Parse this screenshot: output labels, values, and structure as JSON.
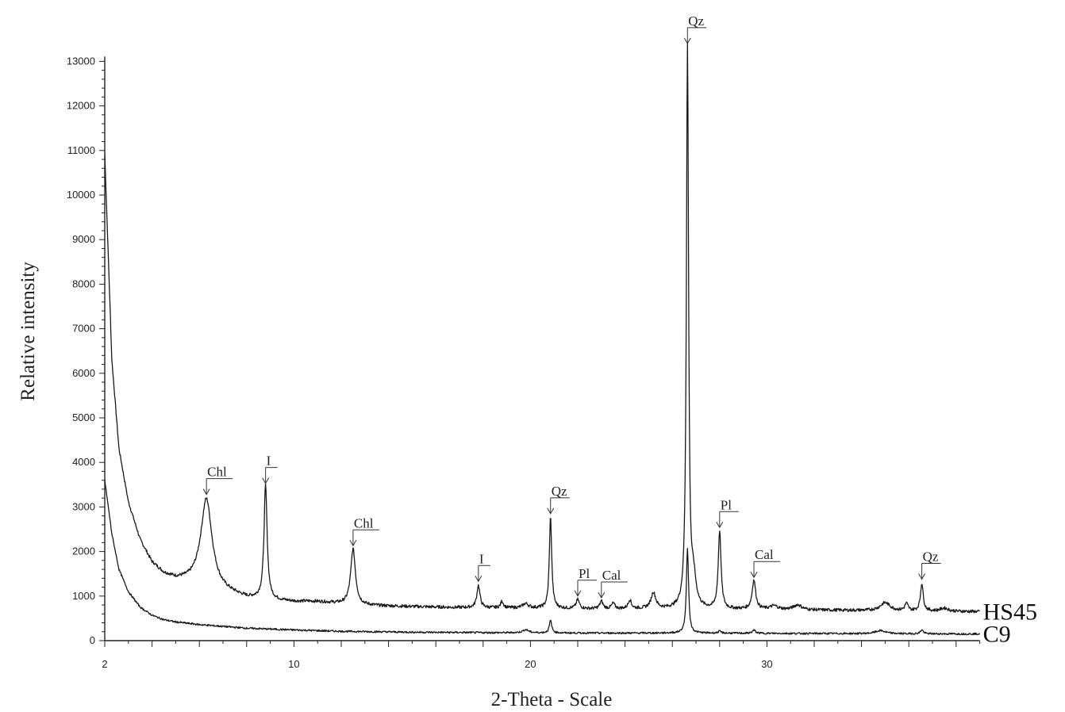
{
  "chart_data": {
    "type": "line",
    "title": "",
    "xlabel": "2-Theta - Scale",
    "ylabel": "Relative intensity",
    "xlim": [
      2,
      39
    ],
    "ylim": [
      0,
      13000
    ],
    "x_ticks": [
      2,
      10,
      20,
      30
    ],
    "y_ticks": [
      0,
      1000,
      2000,
      3000,
      4000,
      5000,
      6000,
      7000,
      8000,
      9000,
      10000,
      11000,
      12000,
      13000
    ],
    "grid": false,
    "series": [
      {
        "name": "HS45",
        "baseline": [
          [
            2,
            10900
          ],
          [
            2.3,
            6300
          ],
          [
            2.6,
            4300
          ],
          [
            3,
            3100
          ],
          [
            3.5,
            2250
          ],
          [
            4,
            1750
          ],
          [
            4.5,
            1500
          ],
          [
            5,
            1380
          ],
          [
            5.5,
            1330
          ],
          [
            6,
            1300
          ],
          [
            6.5,
            1200
          ],
          [
            7,
            1100
          ],
          [
            8,
            950
          ],
          [
            9,
            900
          ],
          [
            10,
            850
          ],
          [
            11,
            820
          ],
          [
            12,
            800
          ],
          [
            13,
            780
          ],
          [
            15,
            760
          ],
          [
            17,
            740
          ],
          [
            19,
            730
          ],
          [
            21,
            720
          ],
          [
            23,
            710
          ],
          [
            25,
            710
          ],
          [
            27,
            700
          ],
          [
            29,
            700
          ],
          [
            31,
            690
          ],
          [
            33,
            680
          ],
          [
            35,
            670
          ],
          [
            37,
            660
          ],
          [
            39,
            650
          ]
        ],
        "peaks": [
          [
            6.3,
            1950,
            0.28
          ],
          [
            8.8,
            2550,
            0.08
          ],
          [
            11,
            50,
            1.0
          ],
          [
            12.5,
            1250,
            0.12
          ],
          [
            17.8,
            500,
            0.08
          ],
          [
            18.8,
            150,
            0.07
          ],
          [
            19.8,
            100,
            0.15
          ],
          [
            20.85,
            2050,
            0.06
          ],
          [
            22.0,
            200,
            0.08
          ],
          [
            23.0,
            170,
            0.08
          ],
          [
            23.5,
            120,
            0.08
          ],
          [
            24.2,
            200,
            0.08
          ],
          [
            25.2,
            360,
            0.12
          ],
          [
            26.64,
            12600,
            0.055
          ],
          [
            26.9,
            600,
            0.12
          ],
          [
            28.0,
            1750,
            0.07
          ],
          [
            29.45,
            650,
            0.09
          ],
          [
            30.3,
            80,
            0.2
          ],
          [
            31.3,
            110,
            0.2
          ],
          [
            35.0,
            180,
            0.25
          ],
          [
            35.9,
            160,
            0.08
          ],
          [
            36.55,
            620,
            0.07
          ],
          [
            37.5,
            70,
            0.2
          ]
        ],
        "end_label": "HS45"
      },
      {
        "name": "C9",
        "baseline": [
          [
            2,
            3600
          ],
          [
            2.3,
            2400
          ],
          [
            2.6,
            1600
          ],
          [
            3,
            1100
          ],
          [
            3.5,
            750
          ],
          [
            4,
            570
          ],
          [
            4.5,
            470
          ],
          [
            5,
            420
          ],
          [
            6,
            360
          ],
          [
            7,
            320
          ],
          [
            8,
            280
          ],
          [
            10,
            240
          ],
          [
            12,
            210
          ],
          [
            15,
            190
          ],
          [
            18,
            180
          ],
          [
            20,
            175
          ],
          [
            23,
            170
          ],
          [
            26,
            170
          ],
          [
            29,
            165
          ],
          [
            32,
            160
          ],
          [
            35,
            155
          ],
          [
            39,
            150
          ]
        ],
        "peaks": [
          [
            19.8,
            70,
            0.15
          ],
          [
            20.85,
            280,
            0.06
          ],
          [
            26.64,
            1900,
            0.055
          ],
          [
            28.0,
            40,
            0.08
          ],
          [
            29.45,
            70,
            0.08
          ],
          [
            34.8,
            70,
            0.25
          ],
          [
            36.55,
            90,
            0.07
          ]
        ],
        "end_label": "C9"
      }
    ],
    "annotations": [
      {
        "text": "Chl",
        "x": 6.3,
        "y": 3280
      },
      {
        "text": "I",
        "x": 8.8,
        "y": 3530
      },
      {
        "text": "Chl",
        "x": 12.5,
        "y": 2130
      },
      {
        "text": "I",
        "x": 17.8,
        "y": 1330
      },
      {
        "text": "Qz",
        "x": 20.85,
        "y": 2850
      },
      {
        "text": "Pl",
        "x": 22.0,
        "y": 1000
      },
      {
        "text": "Cal",
        "x": 23.0,
        "y": 960
      },
      {
        "text": "Qz",
        "x": 26.64,
        "y": 13400
      },
      {
        "text": "Pl",
        "x": 28.0,
        "y": 2540
      },
      {
        "text": "Cal",
        "x": 29.45,
        "y": 1420
      },
      {
        "text": "Qz",
        "x": 36.55,
        "y": 1380
      }
    ]
  }
}
